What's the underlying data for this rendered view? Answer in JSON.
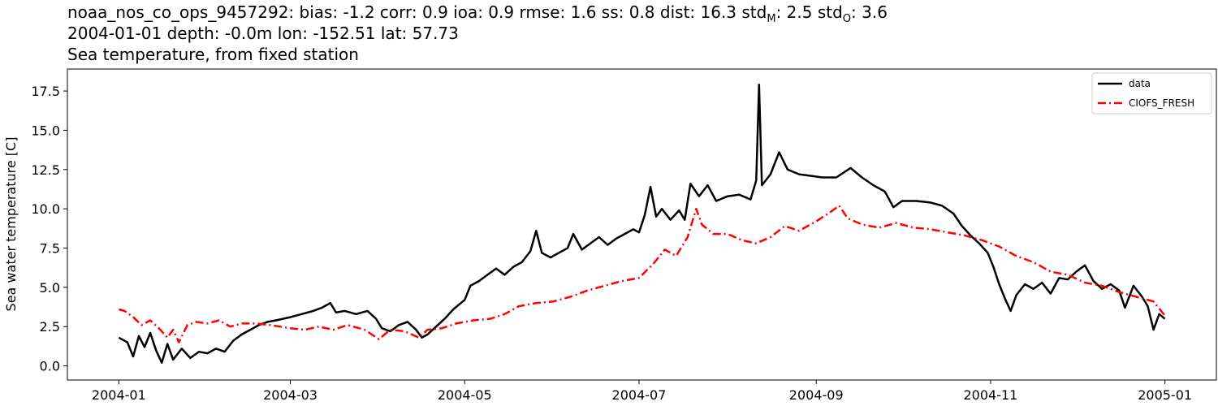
{
  "title": {
    "line1_prefix": "noaa_nos_co_ops_9457292: bias: -1.2  corr: 0.9  ioa: 0.9  rmse: 1.6  ss: 0.8  dist: 16.3  std",
    "line1_sub_m": "M",
    "line1_mid": ": 2.5  std",
    "line1_sub_o": "O",
    "line1_suffix": ": 3.6",
    "line2": "2004-01-01 depth: -0.0m lon: -152.51 lat: 57.73",
    "line3": "Sea temperature, from fixed station"
  },
  "chart_data": {
    "type": "line",
    "xlabel": "",
    "ylabel": "Sea water temperature [C]",
    "xlim": [
      "2003-12-14",
      "2005-01-19"
    ],
    "ylim": [
      -0.9,
      18.9
    ],
    "x_ticks": [
      "2004-01",
      "2004-03",
      "2004-05",
      "2004-07",
      "2004-09",
      "2004-11",
      "2005-01"
    ],
    "x_tick_dates": [
      "2004-01-01",
      "2004-03-01",
      "2004-05-01",
      "2004-07-01",
      "2004-09-01",
      "2004-11-01",
      "2005-01-01"
    ],
    "y_ticks": [
      0.0,
      2.5,
      5.0,
      7.5,
      10.0,
      12.5,
      15.0,
      17.5
    ],
    "y_tick_labels": [
      "0.0",
      "2.5",
      "5.0",
      "7.5",
      "10.0",
      "12.5",
      "15.0",
      "17.5"
    ],
    "grid": false,
    "legend_position": "top-right",
    "series": [
      {
        "name": "data",
        "color": "#000000",
        "style": "solid",
        "points": [
          [
            "2004-01-01",
            1.8
          ],
          [
            "2004-01-04",
            1.5
          ],
          [
            "2004-01-06",
            0.6
          ],
          [
            "2004-01-08",
            1.9
          ],
          [
            "2004-01-10",
            1.2
          ],
          [
            "2004-01-12",
            2.1
          ],
          [
            "2004-01-14",
            1.0
          ],
          [
            "2004-01-16",
            0.2
          ],
          [
            "2004-01-18",
            1.4
          ],
          [
            "2004-01-20",
            0.4
          ],
          [
            "2004-01-23",
            1.1
          ],
          [
            "2004-01-26",
            0.5
          ],
          [
            "2004-01-29",
            0.9
          ],
          [
            "2004-02-01",
            0.8
          ],
          [
            "2004-02-04",
            1.1
          ],
          [
            "2004-02-07",
            0.9
          ],
          [
            "2004-02-10",
            1.6
          ],
          [
            "2004-02-13",
            2.0
          ],
          [
            "2004-02-16",
            2.3
          ],
          [
            "2004-02-19",
            2.6
          ],
          [
            "2004-02-22",
            2.8
          ],
          [
            "2004-02-25",
            2.9
          ],
          [
            "2004-03-01",
            3.1
          ],
          [
            "2004-03-05",
            3.3
          ],
          [
            "2004-03-09",
            3.5
          ],
          [
            "2004-03-12",
            3.7
          ],
          [
            "2004-03-15",
            4.0
          ],
          [
            "2004-03-17",
            3.4
          ],
          [
            "2004-03-20",
            3.5
          ],
          [
            "2004-03-24",
            3.3
          ],
          [
            "2004-03-28",
            3.5
          ],
          [
            "2004-03-31",
            3.0
          ],
          [
            "2004-04-02",
            2.4
          ],
          [
            "2004-04-05",
            2.2
          ],
          [
            "2004-04-08",
            2.6
          ],
          [
            "2004-04-11",
            2.8
          ],
          [
            "2004-04-14",
            2.3
          ],
          [
            "2004-04-16",
            1.8
          ],
          [
            "2004-04-18",
            2.0
          ],
          [
            "2004-04-21",
            2.5
          ],
          [
            "2004-04-24",
            3.0
          ],
          [
            "2004-04-27",
            3.6
          ],
          [
            "2004-05-01",
            4.2
          ],
          [
            "2004-05-03",
            5.1
          ],
          [
            "2004-05-06",
            5.4
          ],
          [
            "2004-05-09",
            5.8
          ],
          [
            "2004-05-12",
            6.2
          ],
          [
            "2004-05-15",
            5.8
          ],
          [
            "2004-05-18",
            6.3
          ],
          [
            "2004-05-21",
            6.6
          ],
          [
            "2004-05-24",
            7.3
          ],
          [
            "2004-05-26",
            8.6
          ],
          [
            "2004-05-28",
            7.2
          ],
          [
            "2004-05-31",
            6.9
          ],
          [
            "2004-06-03",
            7.2
          ],
          [
            "2004-06-06",
            7.5
          ],
          [
            "2004-06-08",
            8.4
          ],
          [
            "2004-06-11",
            7.4
          ],
          [
            "2004-06-14",
            7.8
          ],
          [
            "2004-06-17",
            8.2
          ],
          [
            "2004-06-20",
            7.7
          ],
          [
            "2004-06-23",
            8.1
          ],
          [
            "2004-06-26",
            8.4
          ],
          [
            "2004-06-29",
            8.7
          ],
          [
            "2004-07-01",
            8.5
          ],
          [
            "2004-07-03",
            9.6
          ],
          [
            "2004-07-05",
            11.4
          ],
          [
            "2004-07-07",
            9.5
          ],
          [
            "2004-07-09",
            10.0
          ],
          [
            "2004-07-12",
            9.3
          ],
          [
            "2004-07-15",
            9.9
          ],
          [
            "2004-07-17",
            9.3
          ],
          [
            "2004-07-19",
            11.6
          ],
          [
            "2004-07-22",
            10.8
          ],
          [
            "2004-07-25",
            11.5
          ],
          [
            "2004-07-28",
            10.5
          ],
          [
            "2004-08-01",
            10.8
          ],
          [
            "2004-08-05",
            10.9
          ],
          [
            "2004-08-09",
            10.6
          ],
          [
            "2004-08-11",
            11.8
          ],
          [
            "2004-08-12",
            17.9
          ],
          [
            "2004-08-13",
            11.5
          ],
          [
            "2004-08-16",
            12.2
          ],
          [
            "2004-08-19",
            13.6
          ],
          [
            "2004-08-22",
            12.5
          ],
          [
            "2004-08-26",
            12.2
          ],
          [
            "2004-08-30",
            12.1
          ],
          [
            "2004-09-03",
            12.0
          ],
          [
            "2004-09-08",
            12.0
          ],
          [
            "2004-09-13",
            12.6
          ],
          [
            "2004-09-17",
            12.0
          ],
          [
            "2004-09-21",
            11.5
          ],
          [
            "2004-09-25",
            11.1
          ],
          [
            "2004-09-28",
            10.1
          ],
          [
            "2004-10-01",
            10.5
          ],
          [
            "2004-10-06",
            10.5
          ],
          [
            "2004-10-11",
            10.4
          ],
          [
            "2004-10-15",
            10.2
          ],
          [
            "2004-10-19",
            9.7
          ],
          [
            "2004-10-22",
            8.9
          ],
          [
            "2004-10-25",
            8.3
          ],
          [
            "2004-10-28",
            7.8
          ],
          [
            "2004-10-31",
            7.2
          ],
          [
            "2004-11-02",
            6.3
          ],
          [
            "2004-11-04",
            5.2
          ],
          [
            "2004-11-06",
            4.3
          ],
          [
            "2004-11-08",
            3.5
          ],
          [
            "2004-11-10",
            4.5
          ],
          [
            "2004-11-13",
            5.2
          ],
          [
            "2004-11-16",
            4.9
          ],
          [
            "2004-11-19",
            5.3
          ],
          [
            "2004-11-22",
            4.6
          ],
          [
            "2004-11-25",
            5.6
          ],
          [
            "2004-11-28",
            5.5
          ],
          [
            "2004-12-01",
            6.0
          ],
          [
            "2004-12-04",
            6.4
          ],
          [
            "2004-12-07",
            5.4
          ],
          [
            "2004-12-10",
            4.9
          ],
          [
            "2004-12-13",
            5.2
          ],
          [
            "2004-12-16",
            4.8
          ],
          [
            "2004-12-18",
            3.7
          ],
          [
            "2004-12-21",
            5.1
          ],
          [
            "2004-12-24",
            4.4
          ],
          [
            "2004-12-26",
            3.8
          ],
          [
            "2004-12-28",
            2.3
          ],
          [
            "2004-12-30",
            3.3
          ],
          [
            "2005-01-01",
            3.0
          ]
        ]
      },
      {
        "name": "CIOFS_FRESH",
        "color": "#ff0000",
        "style": "dashdot",
        "points": [
          [
            "2004-01-01",
            3.6
          ],
          [
            "2004-01-03",
            3.5
          ],
          [
            "2004-01-06",
            3.1
          ],
          [
            "2004-01-09",
            2.6
          ],
          [
            "2004-01-12",
            2.9
          ],
          [
            "2004-01-15",
            2.4
          ],
          [
            "2004-01-18",
            1.8
          ],
          [
            "2004-01-20",
            2.3
          ],
          [
            "2004-01-22",
            1.5
          ],
          [
            "2004-01-25",
            2.6
          ],
          [
            "2004-01-28",
            2.8
          ],
          [
            "2004-02-01",
            2.7
          ],
          [
            "2004-02-05",
            2.9
          ],
          [
            "2004-02-09",
            2.5
          ],
          [
            "2004-02-13",
            2.7
          ],
          [
            "2004-02-18",
            2.7
          ],
          [
            "2004-02-23",
            2.6
          ],
          [
            "2004-03-01",
            2.4
          ],
          [
            "2004-03-06",
            2.3
          ],
          [
            "2004-03-11",
            2.5
          ],
          [
            "2004-03-16",
            2.3
          ],
          [
            "2004-03-21",
            2.6
          ],
          [
            "2004-03-27",
            2.3
          ],
          [
            "2004-04-01",
            1.7
          ],
          [
            "2004-04-05",
            2.3
          ],
          [
            "2004-04-10",
            2.2
          ],
          [
            "2004-04-15",
            1.8
          ],
          [
            "2004-04-18",
            2.3
          ],
          [
            "2004-04-23",
            2.4
          ],
          [
            "2004-04-28",
            2.7
          ],
          [
            "2004-05-04",
            2.9
          ],
          [
            "2004-05-10",
            3.0
          ],
          [
            "2004-05-15",
            3.3
          ],
          [
            "2004-05-20",
            3.8
          ],
          [
            "2004-05-26",
            4.0
          ],
          [
            "2004-06-01",
            4.1
          ],
          [
            "2004-06-07",
            4.4
          ],
          [
            "2004-06-13",
            4.8
          ],
          [
            "2004-06-19",
            5.1
          ],
          [
            "2004-06-25",
            5.4
          ],
          [
            "2004-07-01",
            5.6
          ],
          [
            "2004-07-06",
            6.5
          ],
          [
            "2004-07-10",
            7.4
          ],
          [
            "2004-07-14",
            7.0
          ],
          [
            "2004-07-18",
            8.2
          ],
          [
            "2004-07-21",
            10.0
          ],
          [
            "2004-07-23",
            9.0
          ],
          [
            "2004-07-27",
            8.4
          ],
          [
            "2004-08-01",
            8.4
          ],
          [
            "2004-08-06",
            8.0
          ],
          [
            "2004-08-11",
            7.8
          ],
          [
            "2004-08-16",
            8.2
          ],
          [
            "2004-08-21",
            8.9
          ],
          [
            "2004-08-26",
            8.6
          ],
          [
            "2004-09-01",
            9.2
          ],
          [
            "2004-09-06",
            9.8
          ],
          [
            "2004-09-09",
            10.2
          ],
          [
            "2004-09-12",
            9.4
          ],
          [
            "2004-09-17",
            9.0
          ],
          [
            "2004-09-23",
            8.8
          ],
          [
            "2004-09-29",
            9.1
          ],
          [
            "2004-10-05",
            8.8
          ],
          [
            "2004-10-11",
            8.7
          ],
          [
            "2004-10-17",
            8.5
          ],
          [
            "2004-10-23",
            8.3
          ],
          [
            "2004-10-29",
            8.0
          ],
          [
            "2004-11-04",
            7.6
          ],
          [
            "2004-11-10",
            7.0
          ],
          [
            "2004-11-16",
            6.6
          ],
          [
            "2004-11-22",
            6.0
          ],
          [
            "2004-11-28",
            5.8
          ],
          [
            "2004-12-04",
            5.3
          ],
          [
            "2004-12-10",
            5.1
          ],
          [
            "2004-12-16",
            4.7
          ],
          [
            "2004-12-22",
            4.4
          ],
          [
            "2004-12-28",
            4.1
          ],
          [
            "2005-01-01",
            3.2
          ]
        ]
      }
    ]
  }
}
